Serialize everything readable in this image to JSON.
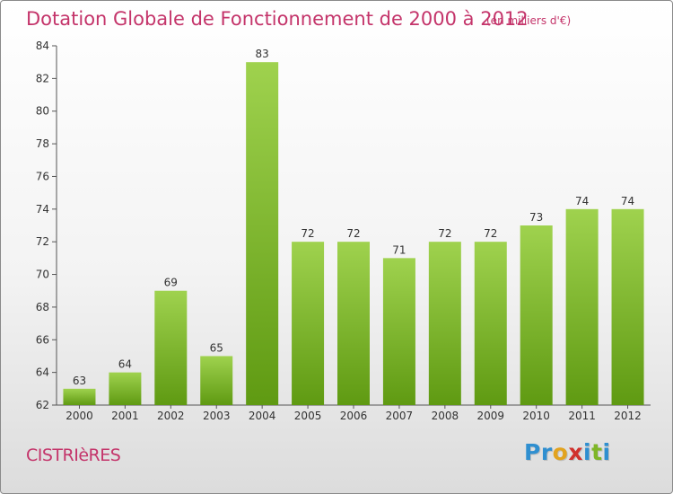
{
  "header": {
    "title": "Dotation Globale de Fonctionnement de 2000 à 2012",
    "subtitle": "(en milliers d'€)"
  },
  "footer": {
    "commune": "CISTRIèRES",
    "logo_letters": [
      {
        "ch": "P",
        "color": "#2f8fd0"
      },
      {
        "ch": "r",
        "color": "#2f8fd0"
      },
      {
        "ch": "o",
        "color": "#e2a31f"
      },
      {
        "ch": "x",
        "color": "#d0312d"
      },
      {
        "ch": "i",
        "color": "#2f8fd0"
      },
      {
        "ch": "t",
        "color": "#7fb628"
      },
      {
        "ch": "i",
        "color": "#2f8fd0"
      }
    ]
  },
  "chart_data": {
    "type": "bar",
    "title": "Dotation Globale de Fonctionnement de 2000 à 2012",
    "subtitle": "(en milliers d'€)",
    "categories": [
      "2000",
      "2001",
      "2002",
      "2003",
      "2004",
      "2005",
      "2006",
      "2007",
      "2008",
      "2009",
      "2010",
      "2011",
      "2012"
    ],
    "values": [
      63,
      64,
      69,
      65,
      83,
      72,
      72,
      71,
      72,
      72,
      73,
      74,
      74
    ],
    "ylim": [
      62,
      84
    ],
    "yticks": [
      62,
      64,
      66,
      68,
      70,
      72,
      74,
      76,
      78,
      80,
      82,
      84
    ],
    "xlabel": "",
    "ylabel": "",
    "grid": false,
    "bar_color_top": "#9fd24e",
    "bar_color_bottom": "#5f9a12",
    "data_labels": true
  }
}
